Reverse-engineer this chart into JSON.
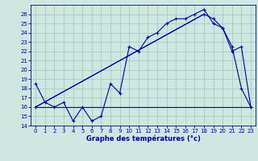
{
  "title": "Graphe des températures (°c)",
  "bg_color": "#cce8e0",
  "grid_color": "#aad0c8",
  "line_color": "#0000aa",
  "ylim": [
    14,
    27
  ],
  "xlim": [
    -0.5,
    23.5
  ],
  "yticks": [
    14,
    15,
    16,
    17,
    18,
    19,
    20,
    21,
    22,
    23,
    24,
    25,
    26
  ],
  "xticks": [
    0,
    1,
    2,
    3,
    4,
    5,
    6,
    7,
    8,
    9,
    10,
    11,
    12,
    13,
    14,
    15,
    16,
    17,
    18,
    19,
    20,
    21,
    22,
    23
  ],
  "series1_x": [
    0,
    1,
    2,
    3,
    4,
    5,
    6,
    7,
    8,
    9,
    10,
    11,
    12,
    13,
    14,
    15,
    16,
    17,
    18,
    19,
    20,
    21,
    22,
    23
  ],
  "series1_y": [
    18.5,
    16.5,
    16.0,
    16.5,
    14.5,
    16.0,
    14.5,
    15.0,
    18.5,
    17.5,
    22.5,
    22.0,
    23.5,
    24.0,
    25.0,
    25.5,
    25.5,
    26.0,
    26.5,
    25.0,
    24.5,
    22.5,
    18.0,
    16.0
  ],
  "series2_x": [
    0,
    18,
    19,
    20,
    21,
    22,
    23
  ],
  "series2_y": [
    16.0,
    26.0,
    25.5,
    24.5,
    22.0,
    22.5,
    16.0
  ],
  "series3_x": [
    0,
    18
  ],
  "series3_y": [
    16.0,
    26.0
  ],
  "series4_x": [
    0,
    23
  ],
  "series4_y": [
    16.0,
    16.0
  ],
  "marker": "+"
}
